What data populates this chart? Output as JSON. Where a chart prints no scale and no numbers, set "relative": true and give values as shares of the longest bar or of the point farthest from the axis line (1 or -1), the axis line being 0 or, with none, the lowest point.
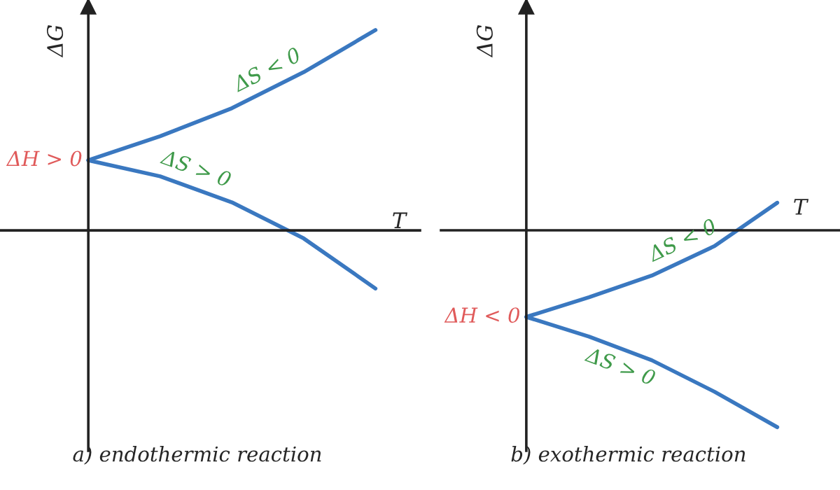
{
  "chart_data": [
    {
      "type": "line",
      "title": "a) endothermic reaction",
      "xlabel": "T",
      "ylabel": "ΔG",
      "relative": true,
      "categories": [
        null,
        null,
        null,
        null,
        null
      ],
      "series": [
        {
          "color": "#3a78c0",
          "values": [
            0.35,
            0.47,
            0.61,
            0.79,
            1
          ]
        },
        {
          "color": "#3a78c0",
          "values": [
            0.35,
            0.27,
            0.14,
            -0.04,
            -0.29
          ]
        }
      ],
      "annotations": [
        "ΔH > 0",
        "ΔS < 0",
        "ΔS > 0"
      ],
      "line_style": "solid"
    },
    {
      "type": "line",
      "title": "b) exothermic reaction",
      "xlabel": "T",
      "ylabel": "ΔG",
      "relative": true,
      "categories": [
        null,
        null,
        null,
        null,
        null
      ],
      "series": [
        {
          "color": "#3a78c0",
          "values": [
            -0.44,
            -0.34,
            -0.23,
            -0.08,
            0.14
          ]
        },
        {
          "color": "#3a78c0",
          "values": [
            -0.44,
            -0.54,
            -0.66,
            -0.82,
            -1
          ]
        }
      ],
      "annotations": [
        "ΔH < 0",
        "ΔS < 0",
        "ΔS > 0"
      ],
      "line_style": "solid"
    }
  ]
}
